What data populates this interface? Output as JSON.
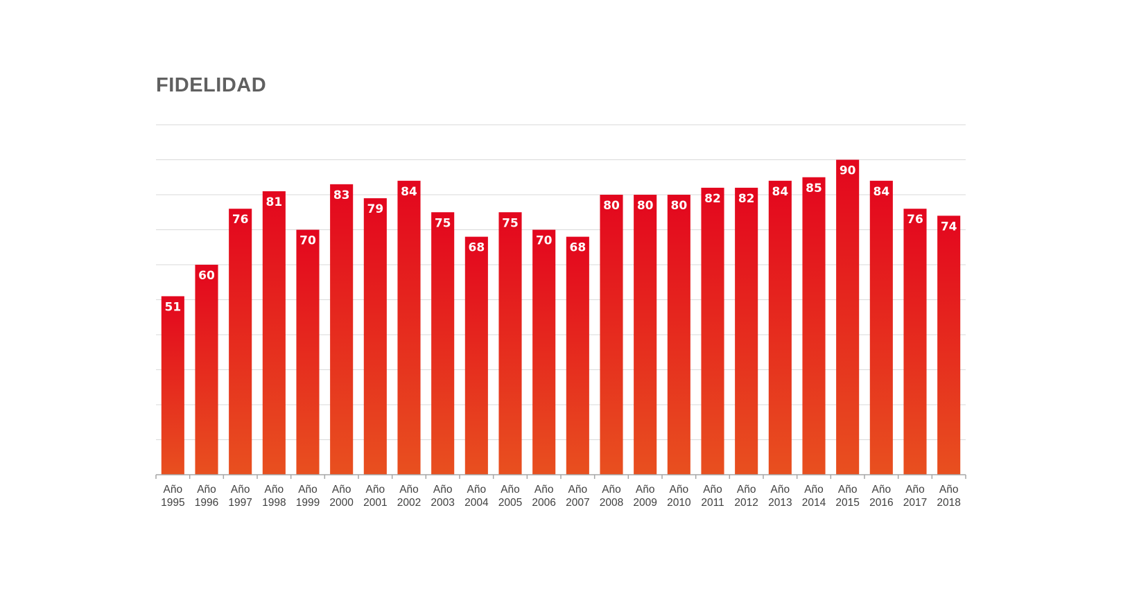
{
  "title": "FIDELIDAD",
  "colors": {
    "bar_top": "#e3061e",
    "bar_bottom": "#e8501f",
    "label": "#ffffff",
    "title": "#606060",
    "grid": "#d9d9d9",
    "axis": "#a6a6a6"
  },
  "chart_data": {
    "type": "bar",
    "title": "FIDELIDAD",
    "categories": [
      [
        "Año",
        "1995"
      ],
      [
        "Año",
        "1996"
      ],
      [
        "Año",
        "1997"
      ],
      [
        "Año",
        "1998"
      ],
      [
        "Año",
        "1999"
      ],
      [
        "Año",
        "2000"
      ],
      [
        "Año",
        "2001"
      ],
      [
        "Año",
        "2002"
      ],
      [
        "Año",
        "2003"
      ],
      [
        "Año",
        "2004"
      ],
      [
        "Año",
        "2005"
      ],
      [
        "Año",
        "2006"
      ],
      [
        "Año",
        "2007"
      ],
      [
        "Año",
        "2008"
      ],
      [
        "Año",
        "2009"
      ],
      [
        "Año",
        "2010"
      ],
      [
        "Año",
        "2011"
      ],
      [
        "Año",
        "2012"
      ],
      [
        "Año",
        "2013"
      ],
      [
        "Año",
        "2014"
      ],
      [
        "Año",
        "2015"
      ],
      [
        "Año",
        "2016"
      ],
      [
        "Año",
        "2017"
      ],
      [
        "Año",
        "2018"
      ]
    ],
    "values": [
      51,
      60,
      76,
      81,
      70,
      83,
      79,
      84,
      75,
      68,
      75,
      70,
      68,
      80,
      80,
      80,
      82,
      82,
      84,
      85,
      90,
      84,
      76,
      74
    ],
    "ylim": [
      0,
      100
    ],
    "gridlines": [
      10,
      20,
      30,
      40,
      50,
      60,
      70,
      80,
      90,
      100
    ],
    "grid": true,
    "y_axis_labels_shown": false,
    "data_labels": "inside-top"
  }
}
